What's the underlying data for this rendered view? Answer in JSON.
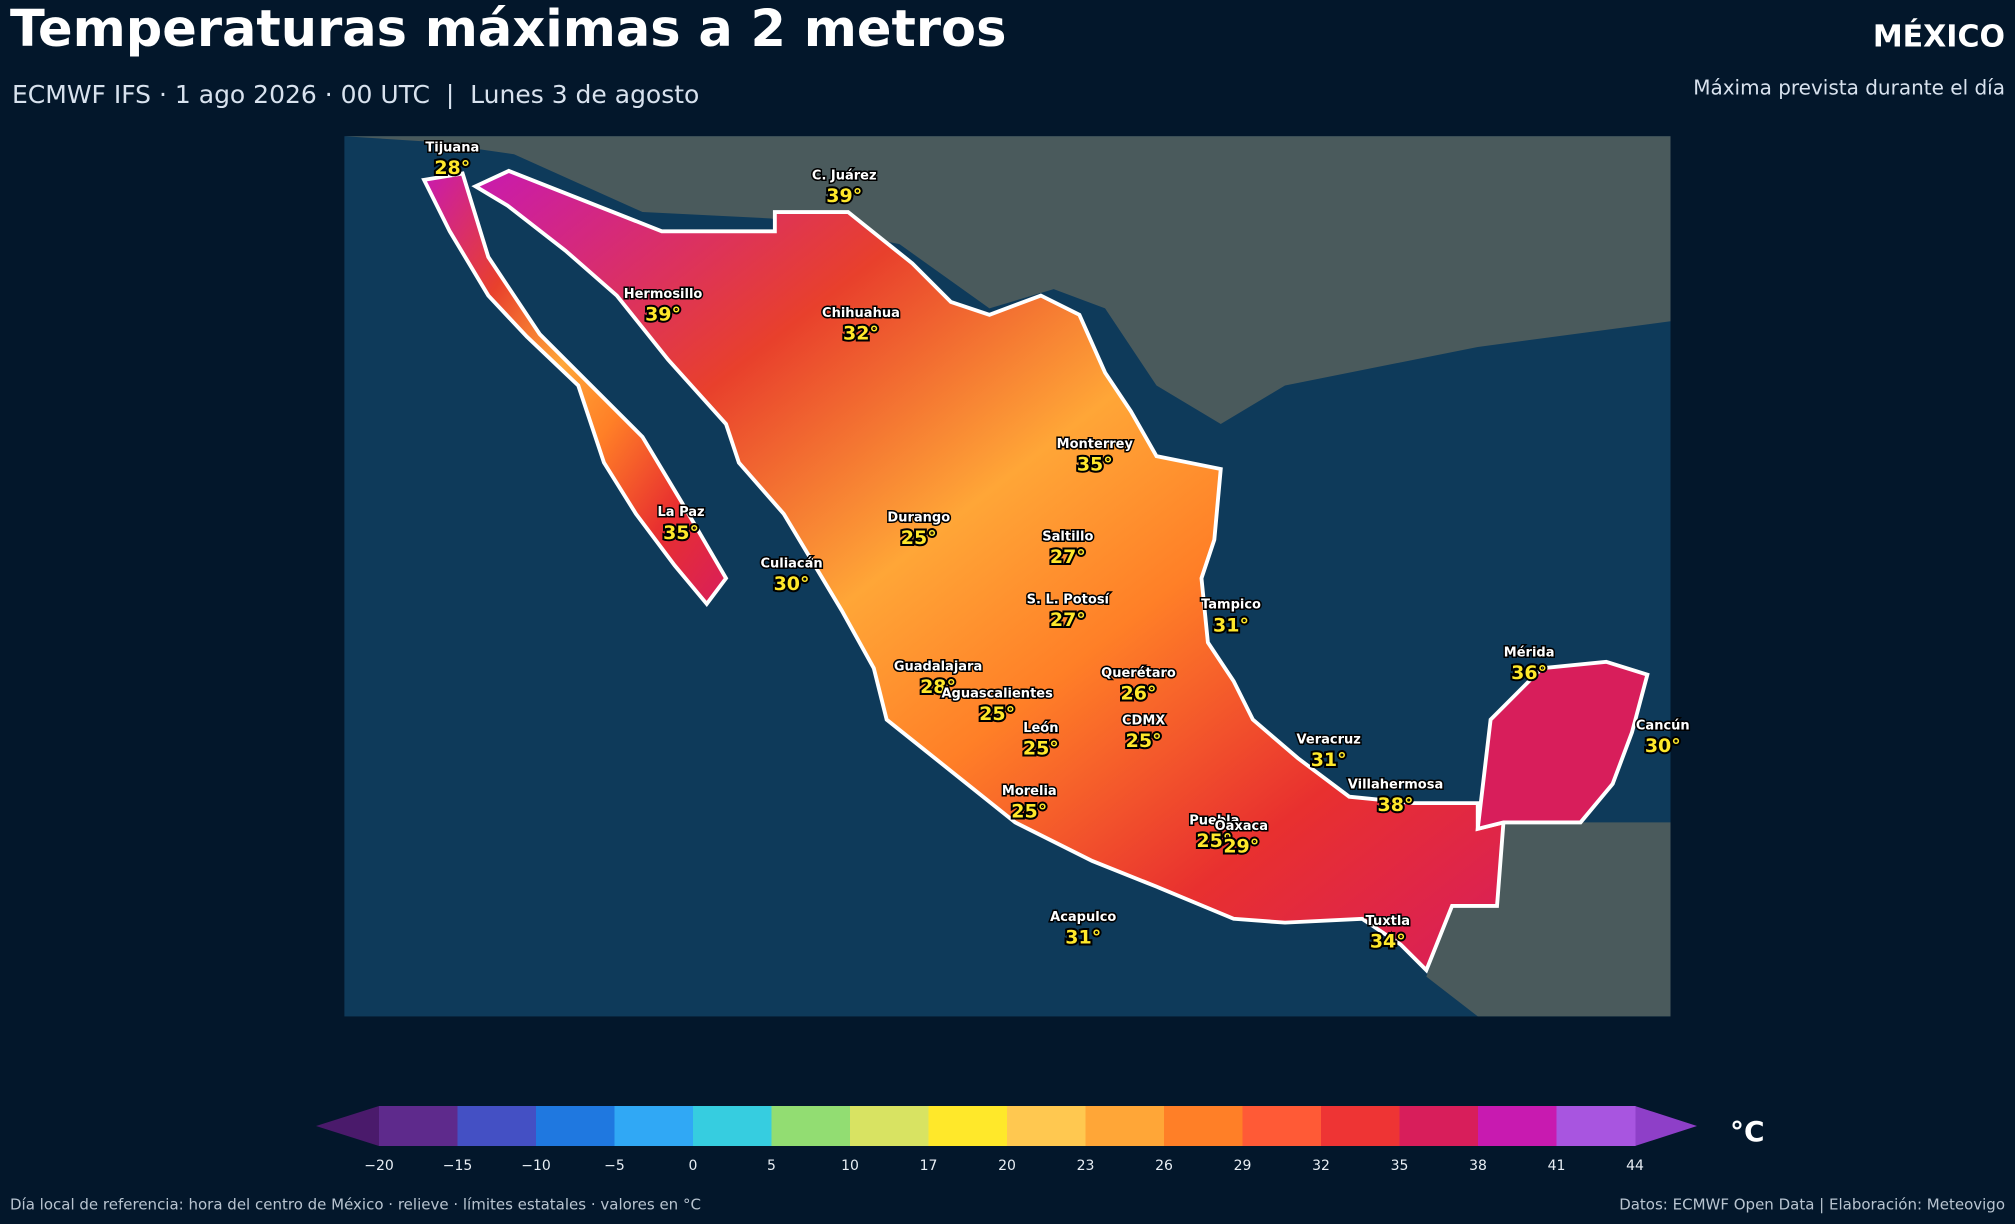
{
  "header": {
    "title": "Temperaturas máximas a 2 metros",
    "subtitle": "ECMWF IFS · 1 ago 2026 · 00 UTC  |  Lunes 3 de agosto",
    "region": "MÉXICO",
    "region_note": "Máxima prevista durante el día"
  },
  "cities": [
    {
      "name": "Tijuana",
      "temp": "28°"
    },
    {
      "name": "C. Juárez",
      "temp": "39°"
    },
    {
      "name": "Hermosillo",
      "temp": "39°"
    },
    {
      "name": "Chihuahua",
      "temp": "32°"
    },
    {
      "name": "Monterrey",
      "temp": "35°"
    },
    {
      "name": "La Paz",
      "temp": "35°"
    },
    {
      "name": "Durango",
      "temp": "25°"
    },
    {
      "name": "Saltillo",
      "temp": "27°"
    },
    {
      "name": "Culiacán",
      "temp": "30°"
    },
    {
      "name": "S. L. Potosí",
      "temp": "27°"
    },
    {
      "name": "Tampico",
      "temp": "31°"
    },
    {
      "name": "Mérida",
      "temp": "36°"
    },
    {
      "name": "Querétaro",
      "temp": "26°"
    },
    {
      "name": "Guadalajara",
      "temp": "28°"
    },
    {
      "name": "Aguascalientes",
      "temp": "25°"
    },
    {
      "name": "Cancún",
      "temp": "30°"
    },
    {
      "name": "CDMX",
      "temp": "25°"
    },
    {
      "name": "León",
      "temp": "25°"
    },
    {
      "name": "Veracruz",
      "temp": "31°"
    },
    {
      "name": "Villahermosa",
      "temp": "38°"
    },
    {
      "name": "Morelia",
      "temp": "25°"
    },
    {
      "name": "Puebla",
      "temp": "25°"
    },
    {
      "name": "Oaxaca",
      "temp": "29°"
    },
    {
      "name": "Acapulco",
      "temp": "31°"
    },
    {
      "name": "Tuxtla",
      "temp": "34°"
    }
  ],
  "colorbar": {
    "ticks": [
      "−20",
      "−15",
      "−10",
      "−5",
      "0",
      "5",
      "10",
      "17",
      "20",
      "23",
      "26",
      "29",
      "32",
      "35",
      "38",
      "41",
      "44"
    ],
    "colors": [
      "#5e2a8c",
      "#4450c4",
      "#1f78e0",
      "#30a8f5",
      "#36cde0",
      "#92dd72",
      "#d8e362",
      "#ffe82a",
      "#ffc850",
      "#ffa637",
      "#ff7f27",
      "#ff5a36",
      "#ee3434",
      "#d81e5b",
      "#c81ab0",
      "#a855e0"
    ],
    "under_color": "#4a1a6b",
    "over_color": "#8e3fc8",
    "unit": "°C"
  },
  "footer": {
    "left": "Día local de referencia: hora del centro de México · relieve · límites estatales · valores en °C",
    "right": "Datos: ECMWF Open Data | Elaboración: Meteovigo"
  }
}
